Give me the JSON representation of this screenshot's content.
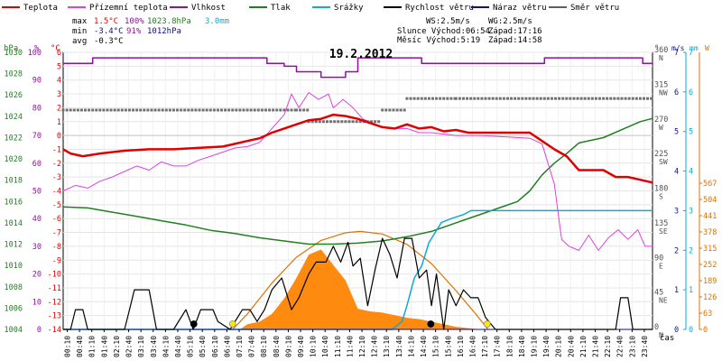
{
  "chart_data": {
    "type": "line",
    "title": "19.2.2012",
    "x_label": "čas",
    "x_ticks": [
      "00:10",
      "00:40",
      "01:10",
      "01:40",
      "02:10",
      "02:40",
      "03:10",
      "03:40",
      "04:10",
      "04:40",
      "05:10",
      "05:40",
      "06:10",
      "06:40",
      "07:10",
      "07:40",
      "08:10",
      "08:40",
      "09:10",
      "09:40",
      "10:10",
      "10:40",
      "11:10",
      "11:40",
      "12:10",
      "12:40",
      "13:10",
      "13:40",
      "14:10",
      "14:40",
      "15:10",
      "15:40",
      "16:10",
      "16:40",
      "17:10",
      "17:40",
      "18:10",
      "18:40",
      "19:10",
      "19:40",
      "20:10",
      "20:40",
      "21:10",
      "21:40",
      "22:10",
      "22:40",
      "23:10",
      "23:40"
    ],
    "legend": [
      {
        "label": "Teplota",
        "color": "#e00000"
      },
      {
        "label": "Přízemní teplota",
        "color": "#e040e0"
      },
      {
        "label": "Vlhkost",
        "color": "#9010a0"
      },
      {
        "label": "Tlak",
        "color": "#208020"
      },
      {
        "label": "Srážky",
        "color": "#10a8d8"
      },
      {
        "label": "Rychlost větru",
        "color": "#000000"
      },
      {
        "label": "Náraz větru",
        "color": "#101080"
      },
      {
        "label": "Směr větru",
        "color": "#606060"
      }
    ],
    "stats": {
      "max_label": "max",
      "max_temp": "1.5°C",
      "max_hum": "100%",
      "max_press": "1023.8hPa",
      "max_rain": "3.0mm",
      "min_label": "min",
      "min_temp": "-3.4°C",
      "min_hum": "91%",
      "min_press": "1012hPa",
      "avg_label": "avg",
      "avg_temp": "-0.3°C",
      "ws": "WS:2.5m/s",
      "wg": "WG:2.5m/s",
      "sun_rise": "Slunce Východ:06:54",
      "sun_set": "Západ:17:16",
      "moon_rise": "Měsíc  Východ:5:19",
      "moon_set": "Západ:14:58"
    },
    "axes": {
      "hpa": {
        "unit": "hPa",
        "color": "#208020",
        "ticks": [
          1004,
          1006,
          1008,
          1010,
          1012,
          1014,
          1016,
          1018,
          1020,
          1022,
          1024,
          1026,
          1028,
          1030
        ]
      },
      "pct": {
        "unit": "%",
        "color": "#9010a0",
        "ticks": [
          0,
          10,
          20,
          30,
          40,
          50,
          60,
          70,
          80,
          90,
          100
        ]
      },
      "temp": {
        "unit": "°C",
        "color": "#e00000",
        "ticks": [
          -14,
          -13,
          -12,
          -11,
          -10,
          -9,
          -8,
          -7,
          -6,
          -5,
          -4,
          -3,
          -2,
          -1,
          0,
          1,
          2,
          3,
          4,
          5,
          6
        ]
      },
      "dir": {
        "unit": "°",
        "color": "#505050",
        "ticks": [
          "0",
          "45",
          "90",
          "135",
          "180",
          "225",
          "270",
          "315",
          "360"
        ],
        "labels": [
          "N",
          "NE",
          "E",
          "SE",
          "S",
          "SW",
          "W",
          "NW",
          "N"
        ]
      },
      "ms": {
        "unit": "m/s",
        "color": "#101080",
        "ticks": [
          0,
          1,
          2,
          3,
          4,
          5,
          6,
          7
        ]
      },
      "mm": {
        "unit": "mm",
        "color": "#10a8d8",
        "ticks": [
          0,
          1,
          2,
          3,
          4,
          5,
          6,
          7
        ]
      },
      "wm2": {
        "unit": "W",
        "color": "#e07000",
        "ticks": [
          0,
          63,
          126,
          189,
          252,
          315,
          378,
          441,
          504,
          567
        ]
      }
    },
    "series": {
      "temperature": [
        [
          0,
          -1
        ],
        [
          0.3,
          -1.3
        ],
        [
          0.8,
          -1.5
        ],
        [
          1.5,
          -1.3
        ],
        [
          2.5,
          -1.1
        ],
        [
          3.5,
          -1
        ],
        [
          4.5,
          -1
        ],
        [
          5.5,
          -0.9
        ],
        [
          6.5,
          -0.8
        ],
        [
          7.5,
          -0.4
        ],
        [
          8,
          -0.2
        ],
        [
          8.5,
          0.2
        ],
        [
          9,
          0.5
        ],
        [
          9.5,
          0.8
        ],
        [
          10,
          1.1
        ],
        [
          10.5,
          1.2
        ],
        [
          11,
          1.5
        ],
        [
          11.5,
          1.4
        ],
        [
          12,
          1.2
        ],
        [
          12.5,
          0.9
        ],
        [
          13,
          0.6
        ],
        [
          13.5,
          0.5
        ],
        [
          14,
          0.8
        ],
        [
          14.5,
          0.5
        ],
        [
          15,
          0.6
        ],
        [
          15.5,
          0.3
        ],
        [
          16,
          0.4
        ],
        [
          16.5,
          0.2
        ],
        [
          17,
          0.2
        ],
        [
          18,
          0.2
        ],
        [
          19,
          0.2
        ],
        [
          19.5,
          -0.4
        ],
        [
          20,
          -1
        ],
        [
          20.5,
          -1.5
        ],
        [
          21,
          -2.5
        ],
        [
          22,
          -2.5
        ],
        [
          22.5,
          -3
        ],
        [
          23,
          -3
        ],
        [
          23.5,
          -3.2
        ],
        [
          24,
          -3.4
        ]
      ],
      "ground_temperature": [
        [
          0,
          -4
        ],
        [
          0.5,
          -3.6
        ],
        [
          1,
          -3.8
        ],
        [
          1.5,
          -3.3
        ],
        [
          2,
          -3
        ],
        [
          2.5,
          -2.6
        ],
        [
          3,
          -2.2
        ],
        [
          3.5,
          -2.5
        ],
        [
          4,
          -1.9
        ],
        [
          4.5,
          -2.2
        ],
        [
          5,
          -2.2
        ],
        [
          5.5,
          -1.8
        ],
        [
          6,
          -1.5
        ],
        [
          6.5,
          -1.2
        ],
        [
          7,
          -0.9
        ],
        [
          7.5,
          -0.8
        ],
        [
          8,
          -0.5
        ],
        [
          8.5,
          0.5
        ],
        [
          9,
          1.5
        ],
        [
          9.3,
          3
        ],
        [
          9.6,
          2
        ],
        [
          10,
          3.1
        ],
        [
          10.4,
          2.6
        ],
        [
          10.8,
          3
        ],
        [
          11,
          2
        ],
        [
          11.4,
          2.6
        ],
        [
          11.8,
          2
        ],
        [
          12.2,
          1.2
        ],
        [
          12.6,
          0.9
        ],
        [
          13,
          0.6
        ],
        [
          13.5,
          0.5
        ],
        [
          14,
          0.5
        ],
        [
          14.5,
          0.2
        ],
        [
          15,
          0.2
        ],
        [
          15.5,
          0.1
        ],
        [
          16,
          0
        ],
        [
          17,
          0
        ],
        [
          18,
          -0.1
        ],
        [
          19,
          -0.2
        ],
        [
          19.5,
          -0.6
        ],
        [
          20,
          -3.5
        ],
        [
          20.3,
          -7.5
        ],
        [
          20.6,
          -8
        ],
        [
          21,
          -8.3
        ],
        [
          21.4,
          -7.2
        ],
        [
          21.8,
          -8.3
        ],
        [
          22.2,
          -7.4
        ],
        [
          22.6,
          -6.8
        ],
        [
          23,
          -7.5
        ],
        [
          23.4,
          -6.8
        ],
        [
          23.7,
          -8
        ],
        [
          24,
          -8
        ]
      ],
      "humidity": [
        [
          0,
          96
        ],
        [
          1.1,
          96
        ],
        [
          1.2,
          98
        ],
        [
          8,
          98
        ],
        [
          8.3,
          96
        ],
        [
          9,
          95
        ],
        [
          9.5,
          93
        ],
        [
          10,
          93
        ],
        [
          10.5,
          91
        ],
        [
          11,
          91
        ],
        [
          11.5,
          93
        ],
        [
          12,
          98
        ],
        [
          14.5,
          98
        ],
        [
          14.6,
          96
        ],
        [
          19.5,
          96
        ],
        [
          19.6,
          98
        ],
        [
          23.5,
          98
        ],
        [
          23.6,
          96
        ],
        [
          24,
          96
        ]
      ],
      "pressure": [
        [
          0,
          1015.5
        ],
        [
          1,
          1015.4
        ],
        [
          2,
          1015
        ],
        [
          3,
          1014.6
        ],
        [
          4,
          1014.2
        ],
        [
          5,
          1013.8
        ],
        [
          6,
          1013.3
        ],
        [
          7,
          1013
        ],
        [
          8,
          1012.6
        ],
        [
          9,
          1012.3
        ],
        [
          10,
          1012
        ],
        [
          11,
          1012
        ],
        [
          12,
          1012.1
        ],
        [
          13,
          1012.3
        ],
        [
          14,
          1012.7
        ],
        [
          15,
          1013.2
        ],
        [
          16,
          1014
        ],
        [
          17,
          1014.8
        ],
        [
          18,
          1015.6
        ],
        [
          18.5,
          1016
        ],
        [
          19,
          1017
        ],
        [
          19.5,
          1018.5
        ],
        [
          20,
          1019.6
        ],
        [
          20.5,
          1020.5
        ],
        [
          21,
          1021.5
        ],
        [
          22,
          1022
        ],
        [
          23,
          1023
        ],
        [
          23.5,
          1023.5
        ],
        [
          24,
          1023.8
        ]
      ],
      "rain": [
        [
          0,
          0
        ],
        [
          13.4,
          0
        ],
        [
          13.6,
          0.1
        ],
        [
          13.8,
          0.2
        ],
        [
          14,
          0.6
        ],
        [
          14.3,
          1.3
        ],
        [
          14.6,
          1.6
        ],
        [
          14.9,
          2.2
        ],
        [
          15.2,
          2.5
        ],
        [
          15.4,
          2.7
        ],
        [
          15.8,
          2.8
        ],
        [
          16.3,
          2.9
        ],
        [
          16.6,
          3
        ],
        [
          24,
          3
        ]
      ],
      "wind_speed": [
        [
          0,
          0
        ],
        [
          0.3,
          0
        ],
        [
          0.5,
          0.5
        ],
        [
          0.8,
          0.5
        ],
        [
          1,
          0
        ],
        [
          2,
          0
        ],
        [
          2.5,
          0
        ],
        [
          2.7,
          0.5
        ],
        [
          2.9,
          1
        ],
        [
          3.5,
          1
        ],
        [
          3.8,
          0
        ],
        [
          4.5,
          0
        ],
        [
          5,
          0.5
        ],
        [
          5.3,
          0
        ],
        [
          5.6,
          0.5
        ],
        [
          6.1,
          0.5
        ],
        [
          6.3,
          0.2
        ],
        [
          6.8,
          0
        ],
        [
          7.3,
          0.5
        ],
        [
          7.6,
          0.5
        ],
        [
          7.9,
          0.2
        ],
        [
          8.2,
          0.5
        ],
        [
          8.5,
          1
        ],
        [
          8.9,
          1.3
        ],
        [
          9.3,
          0.5
        ],
        [
          9.6,
          0.8
        ],
        [
          10,
          1.4
        ],
        [
          10.3,
          1.7
        ],
        [
          10.7,
          1.7
        ],
        [
          11,
          2.1
        ],
        [
          11.3,
          1.7
        ],
        [
          11.6,
          2.2
        ],
        [
          11.8,
          1.6
        ],
        [
          12.1,
          1.8
        ],
        [
          12.4,
          0.6
        ],
        [
          12.7,
          1.5
        ],
        [
          13,
          2.3
        ],
        [
          13.3,
          1.9
        ],
        [
          13.6,
          1.3
        ],
        [
          13.9,
          2.3
        ],
        [
          14.2,
          2.3
        ],
        [
          14.5,
          1.3
        ],
        [
          14.8,
          1.5
        ],
        [
          15,
          0.6
        ],
        [
          15.2,
          1.4
        ],
        [
          15.5,
          0
        ],
        [
          15.7,
          1
        ],
        [
          16,
          0.6
        ],
        [
          16.3,
          1
        ],
        [
          16.6,
          0.8
        ],
        [
          16.9,
          0.8
        ],
        [
          17.2,
          0.3
        ],
        [
          17.6,
          0
        ],
        [
          18,
          0
        ],
        [
          22.5,
          0
        ],
        [
          22.7,
          0.8
        ],
        [
          23,
          0.8
        ],
        [
          23.2,
          0
        ],
        [
          24,
          0
        ]
      ],
      "wind_gust": [
        [
          0,
          0
        ],
        [
          24,
          0
        ]
      ],
      "wind_direction": [
        [
          0,
          285
        ],
        [
          9.5,
          285
        ],
        [
          10,
          270
        ],
        [
          13,
          285
        ],
        [
          14,
          300
        ],
        [
          16,
          300
        ],
        [
          24,
          300
        ]
      ],
      "solar": [
        [
          0,
          0
        ],
        [
          7.2,
          0
        ],
        [
          7.5,
          20
        ],
        [
          8,
          30
        ],
        [
          8.5,
          60
        ],
        [
          9,
          120
        ],
        [
          9.5,
          200
        ],
        [
          10,
          290
        ],
        [
          10.5,
          310
        ],
        [
          11,
          250
        ],
        [
          11.5,
          190
        ],
        [
          12,
          80
        ],
        [
          12.5,
          70
        ],
        [
          13,
          65
        ],
        [
          13.5,
          55
        ],
        [
          14,
          45
        ],
        [
          14.5,
          40
        ],
        [
          15,
          30
        ],
        [
          15.5,
          20
        ],
        [
          16,
          10
        ],
        [
          16.5,
          5
        ],
        [
          17,
          0
        ],
        [
          24,
          0
        ]
      ],
      "solar_theoretical": [
        [
          6.9,
          0
        ],
        [
          7.5,
          60
        ],
        [
          8.5,
          180
        ],
        [
          9.5,
          280
        ],
        [
          10.5,
          345
        ],
        [
          11.5,
          375
        ],
        [
          12.1,
          380
        ],
        [
          13,
          370
        ],
        [
          14,
          330
        ],
        [
          15,
          255
        ],
        [
          16,
          150
        ],
        [
          16.8,
          60
        ],
        [
          17.3,
          0
        ]
      ]
    }
  }
}
